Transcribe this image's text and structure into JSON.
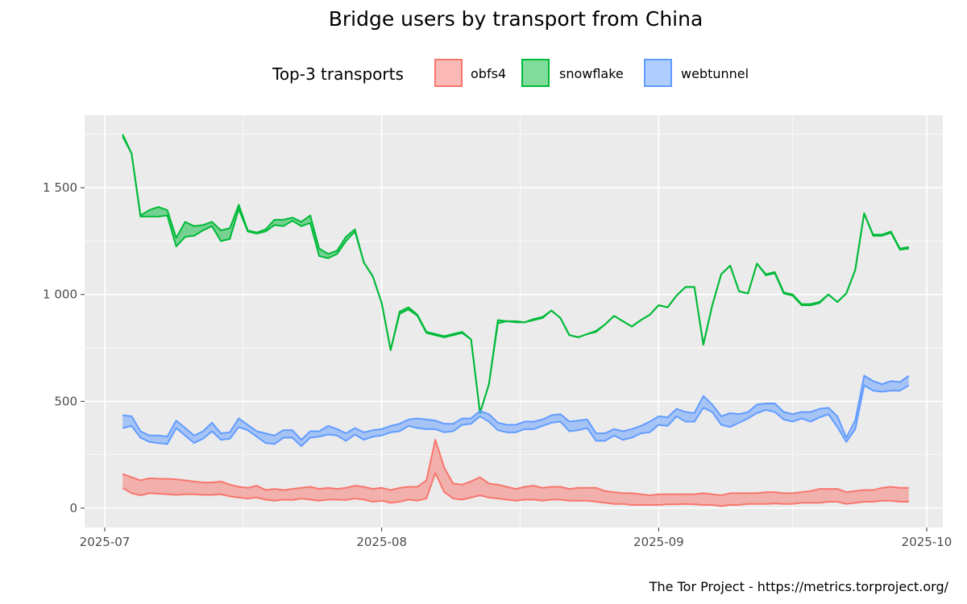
{
  "chart_data": {
    "type": "area",
    "title": "Bridge users by transport from China",
    "caption": "The Tor Project - https://metrics.torproject.org/",
    "xlabel": "",
    "ylabel": "",
    "ylim": [
      -90,
      1840
    ],
    "xlim": [
      "2025-06-29",
      "2025-10-03"
    ],
    "grid": true,
    "legend": {
      "title": "Top-3 transports",
      "placement": "top",
      "entries": [
        "obfs4",
        "snowflake",
        "webtunnel"
      ]
    },
    "x_ticks": [
      {
        "label": "2025-07",
        "date": "2025-07-01"
      },
      {
        "label": "2025-08",
        "date": "2025-08-01"
      },
      {
        "label": "2025-09",
        "date": "2025-09-01"
      },
      {
        "label": "2025-10",
        "date": "2025-10-01"
      }
    ],
    "y_ticks": [
      {
        "label": "0",
        "value": 0
      },
      {
        "label": "500",
        "value": 500
      },
      {
        "label": "1 000",
        "value": 1000
      },
      {
        "label": "1 500",
        "value": 1500
      }
    ],
    "start_date": "2025-07-03",
    "series": [
      {
        "name": "obfs4",
        "color": "#F8766D",
        "upper": [
          160,
          145,
          130,
          140,
          138,
          137,
          135,
          130,
          125,
          120,
          120,
          125,
          110,
          100,
          95,
          105,
          85,
          90,
          85,
          90,
          95,
          100,
          90,
          95,
          90,
          95,
          105,
          100,
          90,
          95,
          85,
          95,
          100,
          100,
          130,
          320,
          190,
          115,
          110,
          125,
          145,
          115,
          110,
          100,
          90,
          100,
          105,
          95,
          100,
          100,
          90,
          95,
          95,
          95,
          80,
          75,
          70,
          70,
          65,
          60,
          65,
          65,
          65,
          65,
          65,
          70,
          65,
          60,
          70,
          70,
          70,
          70,
          75,
          75,
          70,
          70,
          75,
          80,
          90,
          90,
          90,
          75,
          80,
          85,
          85,
          95,
          100,
          95,
          95
        ],
        "lower": [
          95,
          70,
          60,
          70,
          68,
          65,
          62,
          65,
          65,
          62,
          62,
          65,
          55,
          50,
          45,
          50,
          40,
          35,
          40,
          38,
          45,
          40,
          35,
          40,
          40,
          38,
          45,
          40,
          30,
          35,
          25,
          30,
          40,
          35,
          45,
          165,
          75,
          45,
          40,
          50,
          60,
          50,
          45,
          40,
          35,
          40,
          40,
          35,
          40,
          40,
          35,
          35,
          35,
          30,
          25,
          20,
          20,
          15,
          15,
          15,
          15,
          18,
          18,
          20,
          18,
          15,
          15,
          10,
          15,
          15,
          20,
          20,
          20,
          22,
          20,
          20,
          25,
          25,
          25,
          30,
          30,
          20,
          25,
          30,
          30,
          35,
          35,
          30,
          30
        ]
      },
      {
        "name": "snowflake",
        "color": "#00BA38",
        "upper": [
          1750,
          1660,
          1370,
          1395,
          1410,
          1395,
          1265,
          1340,
          1320,
          1325,
          1340,
          1300,
          1310,
          1420,
          1300,
          1290,
          1305,
          1350,
          1350,
          1360,
          1340,
          1370,
          1215,
          1190,
          1205,
          1270,
          1305,
          1150,
          1085,
          960,
          740,
          920,
          940,
          905,
          825,
          815,
          805,
          815,
          825,
          790,
          445,
          580,
          880,
          875,
          875,
          870,
          885,
          895,
          925,
          890,
          810,
          800,
          815,
          830,
          860,
          900,
          875,
          850,
          880,
          905,
          950,
          940,
          995,
          1035,
          1035,
          765,
          950,
          1095,
          1135,
          1015,
          1005,
          1145,
          1095,
          1105,
          1010,
          1000,
          955,
          955,
          965,
          1000,
          965,
          1005,
          1115,
          1380,
          1280,
          1280,
          1295,
          1215,
          1222
        ],
        "lower": [
          1740,
          1660,
          1365,
          1365,
          1365,
          1370,
          1225,
          1270,
          1275,
          1300,
          1320,
          1250,
          1260,
          1400,
          1295,
          1285,
          1295,
          1325,
          1320,
          1345,
          1320,
          1335,
          1180,
          1170,
          1190,
          1250,
          1295,
          1150,
          1085,
          960,
          740,
          910,
          930,
          900,
          820,
          810,
          800,
          810,
          820,
          790,
          445,
          580,
          865,
          875,
          870,
          870,
          880,
          890,
          925,
          890,
          810,
          800,
          815,
          825,
          860,
          900,
          875,
          850,
          880,
          905,
          950,
          940,
          995,
          1035,
          1035,
          765,
          950,
          1095,
          1135,
          1015,
          1005,
          1145,
          1090,
          1100,
          1005,
          995,
          950,
          950,
          960,
          1000,
          965,
          1005,
          1115,
          1380,
          1275,
          1275,
          1290,
          1210,
          1215
        ]
      },
      {
        "name": "webtunnel",
        "color": "#619CFF",
        "upper": [
          435,
          430,
          360,
          340,
          340,
          335,
          410,
          375,
          340,
          360,
          400,
          350,
          355,
          420,
          390,
          360,
          350,
          340,
          365,
          365,
          320,
          360,
          360,
          385,
          370,
          350,
          375,
          355,
          365,
          370,
          385,
          395,
          415,
          420,
          415,
          410,
          395,
          395,
          420,
          420,
          455,
          440,
          400,
          390,
          390,
          405,
          405,
          415,
          435,
          440,
          405,
          410,
          415,
          350,
          350,
          370,
          360,
          370,
          385,
          405,
          430,
          425,
          465,
          450,
          445,
          525,
          485,
          430,
          445,
          440,
          450,
          485,
          490,
          490,
          450,
          440,
          450,
          450,
          465,
          470,
          430,
          330,
          410,
          620,
          595,
          580,
          595,
          590,
          620
        ],
        "lower": [
          375,
          385,
          330,
          310,
          305,
          300,
          375,
          340,
          305,
          325,
          360,
          320,
          325,
          380,
          365,
          335,
          305,
          300,
          330,
          330,
          290,
          330,
          335,
          345,
          340,
          315,
          345,
          320,
          335,
          340,
          355,
          360,
          385,
          375,
          370,
          370,
          355,
          360,
          390,
          395,
          430,
          405,
          365,
          355,
          355,
          370,
          370,
          385,
          400,
          405,
          360,
          365,
          375,
          315,
          315,
          340,
          320,
          330,
          350,
          355,
          390,
          385,
          430,
          405,
          405,
          470,
          450,
          390,
          380,
          400,
          420,
          445,
          460,
          450,
          415,
          405,
          420,
          405,
          425,
          440,
          380,
          310,
          370,
          575,
          550,
          545,
          550,
          550,
          575
        ]
      }
    ]
  }
}
